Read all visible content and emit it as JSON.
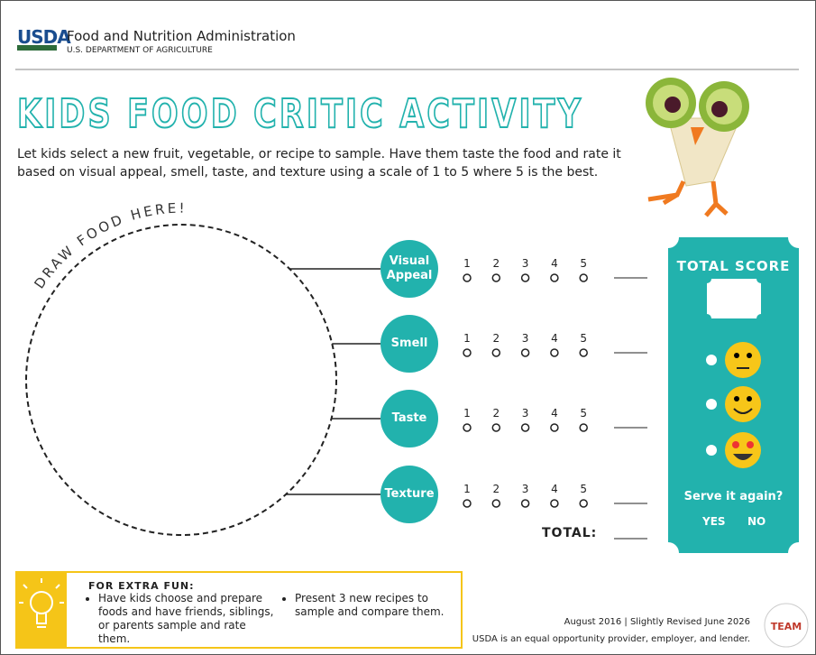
{
  "header": {
    "logo": "USDA",
    "agency": "Food and Nutrition Administration",
    "department": "U.S. DEPARTMENT OF AGRICULTURE"
  },
  "title": "KIDS FOOD CRITIC ACTIVITY",
  "intro": "Let kids select a new fruit, vegetable, or recipe to sample. Have them taste the food and rate it based on visual appeal, smell, taste, and texture using a scale of 1 to 5 where 5 is the best.",
  "draw_label": "DRAW FOOD HERE!",
  "criteria": [
    "Visual Appeal",
    "Smell",
    "Taste",
    "Texture"
  ],
  "scale": [
    1,
    2,
    3,
    4,
    5
  ],
  "total_label": "TOTAL:",
  "score_card": {
    "title": "TOTAL SCORE",
    "question": "Serve it again?",
    "yes": "YES",
    "no": "NO"
  },
  "extra_fun": {
    "heading": "FOR EXTRA FUN:",
    "items": [
      "Have kids choose and prepare foods and have friends, siblings, or parents sample and rate them.",
      "Present 3 new recipes to sample and compare them."
    ]
  },
  "footer": {
    "date": "August 2016 | Slightly Revised June 2026",
    "statement": "USDA is an equal opportunity provider, employer, and lender.",
    "badge": "TEAM"
  }
}
